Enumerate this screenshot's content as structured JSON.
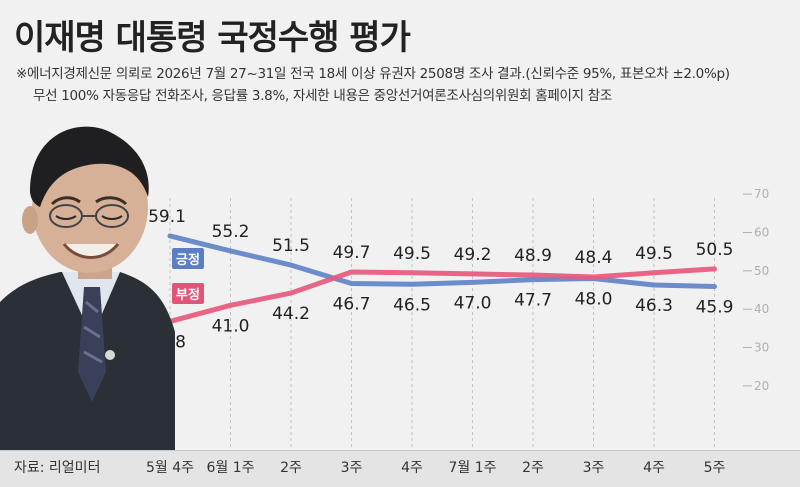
{
  "title": "이재명 대통령 국정수행 평가",
  "note_line1": "※에너지경제신문 의뢰로 2026년 7월 27~31일 전국 18세 이상 유권자 2508명 조사 결과.(신뢰수준 95%, 표본오차 ±2.0%p)",
  "note_line2": "무선 100% 자동응답 전화조사, 응답률 3.8%, 자세한 내용은 중앙선거여론조사심의위원회 홈페이지 참조",
  "source": "자료: 리얼미터",
  "colors": {
    "positive": "#6283c8",
    "negative": "#e65a7c",
    "grid": "#c4c4c4",
    "axis_text": "#b0b0b0"
  },
  "chart_data": {
    "type": "line",
    "categories": [
      "5월 4주",
      "6월 1주",
      "2주",
      "3주",
      "4주",
      "7월 1주",
      "2주",
      "3주",
      "4주",
      "5주"
    ],
    "series": [
      {
        "name": "긍정",
        "values": [
          59.1,
          55.2,
          51.5,
          46.7,
          46.5,
          47.0,
          47.7,
          48.0,
          46.3,
          45.9
        ]
      },
      {
        "name": "부정",
        "values": [
          36.8,
          41.0,
          44.2,
          49.7,
          49.5,
          49.2,
          48.9,
          48.4,
          49.5,
          50.5
        ]
      }
    ],
    "ylim": [
      15,
      75
    ],
    "yticks": [
      20,
      30,
      40,
      50,
      60,
      70
    ],
    "ytick_labels": [
      "20",
      "30",
      "40",
      "50",
      "60",
      "70"
    ],
    "grid": "vertical dashed",
    "legend": "inline labels on lines"
  }
}
